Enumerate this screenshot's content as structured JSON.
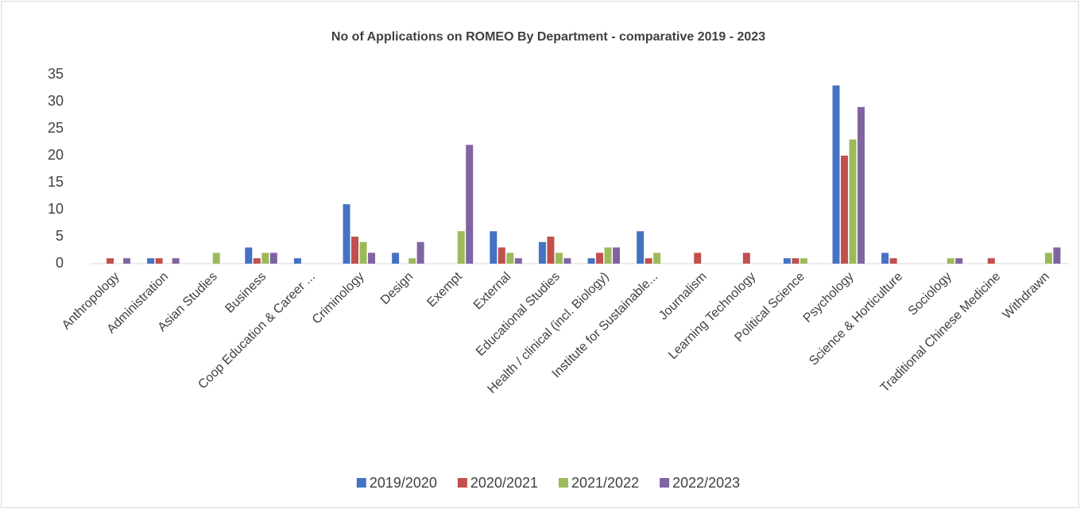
{
  "chart_data": {
    "type": "bar",
    "title": "No of Applications on ROMEO By Department - comparative 2019 - 2023",
    "categories": [
      "Anthropology",
      "Administration",
      "Asian Studies",
      "Business",
      "Coop Education & Career ...",
      "Criminology",
      "Design",
      "Exempt",
      "External",
      "Educational Studies",
      "Health / clinical (incl. Biology)",
      "Institute for Sustainable...",
      "Journalism",
      "Learning Technology",
      "Political Science",
      "Psychology",
      "Science & Horticulture",
      "Sociology",
      "Traditional Chinese Medicine",
      "Withdrawn"
    ],
    "series": [
      {
        "name": "2019/2020",
        "color": "#4472c4",
        "values": [
          0,
          1,
          0,
          3,
          1,
          11,
          2,
          0,
          6,
          4,
          1,
          6,
          0,
          0,
          1,
          33,
          2,
          0,
          0,
          0
        ]
      },
      {
        "name": "2020/2021",
        "color": "#c0504d",
        "values": [
          1,
          1,
          0,
          1,
          0,
          5,
          0,
          0,
          3,
          5,
          2,
          1,
          2,
          2,
          1,
          20,
          1,
          0,
          1,
          0
        ]
      },
      {
        "name": "2021/2022",
        "color": "#9bbb59",
        "values": [
          0,
          0,
          2,
          2,
          0,
          4,
          1,
          6,
          2,
          2,
          3,
          2,
          0,
          0,
          1,
          23,
          0,
          1,
          0,
          2
        ]
      },
      {
        "name": "2022/2023",
        "color": "#8064a2",
        "values": [
          1,
          1,
          0,
          2,
          0,
          2,
          4,
          22,
          1,
          1,
          3,
          0,
          0,
          0,
          0,
          29,
          0,
          1,
          0,
          3
        ]
      }
    ],
    "ylim": [
      0,
      35
    ],
    "yticks": [
      0,
      5,
      10,
      15,
      20,
      25,
      30,
      35
    ],
    "grid": false,
    "legend": "bottom"
  }
}
